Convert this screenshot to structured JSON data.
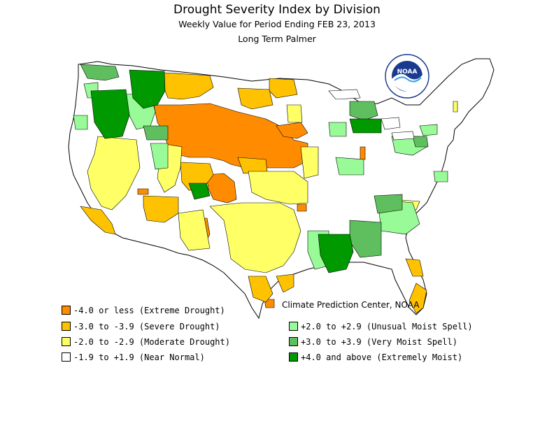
{
  "title": "Drought Severity Index by Division",
  "subtitle": "Weekly Value for Period Ending FEB 23, 2013",
  "index_name": "Long Term Palmer",
  "credit": "Climate Prediction Center, NOAA",
  "logo": {
    "text": "NOAA",
    "ring_text": "NATIONAL OCEANIC AND ATMOSPHERIC ADMINISTRATION · U.S. DEPARTMENT OF COMMERCE",
    "icon": "noaa-logo"
  },
  "colors": {
    "extreme_drought": "#FF8C00",
    "severe_drought": "#FFC200",
    "moderate_drought": "#FFFF66",
    "near_normal": "#FFFFFF",
    "unusual_moist": "#98FB98",
    "very_moist": "#5FBF5F",
    "extremely_moist": "#009900"
  },
  "legend": [
    {
      "label": "-4.0 or less (Extreme Drought)",
      "color": "#FF8C00"
    },
    {
      "label": "-3.0 to -3.9 (Severe Drought)",
      "color": "#FFC200"
    },
    {
      "label": "-2.0 to -2.9 (Moderate Drought)",
      "color": "#FFFF66"
    },
    {
      "label": "-1.9 to +1.9 (Near Normal)",
      "color": "#FFFFFF"
    },
    {
      "label": "+2.0 to +2.9 (Unusual Moist Spell)",
      "color": "#98FB98"
    },
    {
      "label": "+3.0 to +3.9 (Very Moist Spell)",
      "color": "#5FBF5F"
    },
    {
      "label": "+4.0 and above (Extremely Moist)",
      "color": "#009900"
    }
  ]
}
